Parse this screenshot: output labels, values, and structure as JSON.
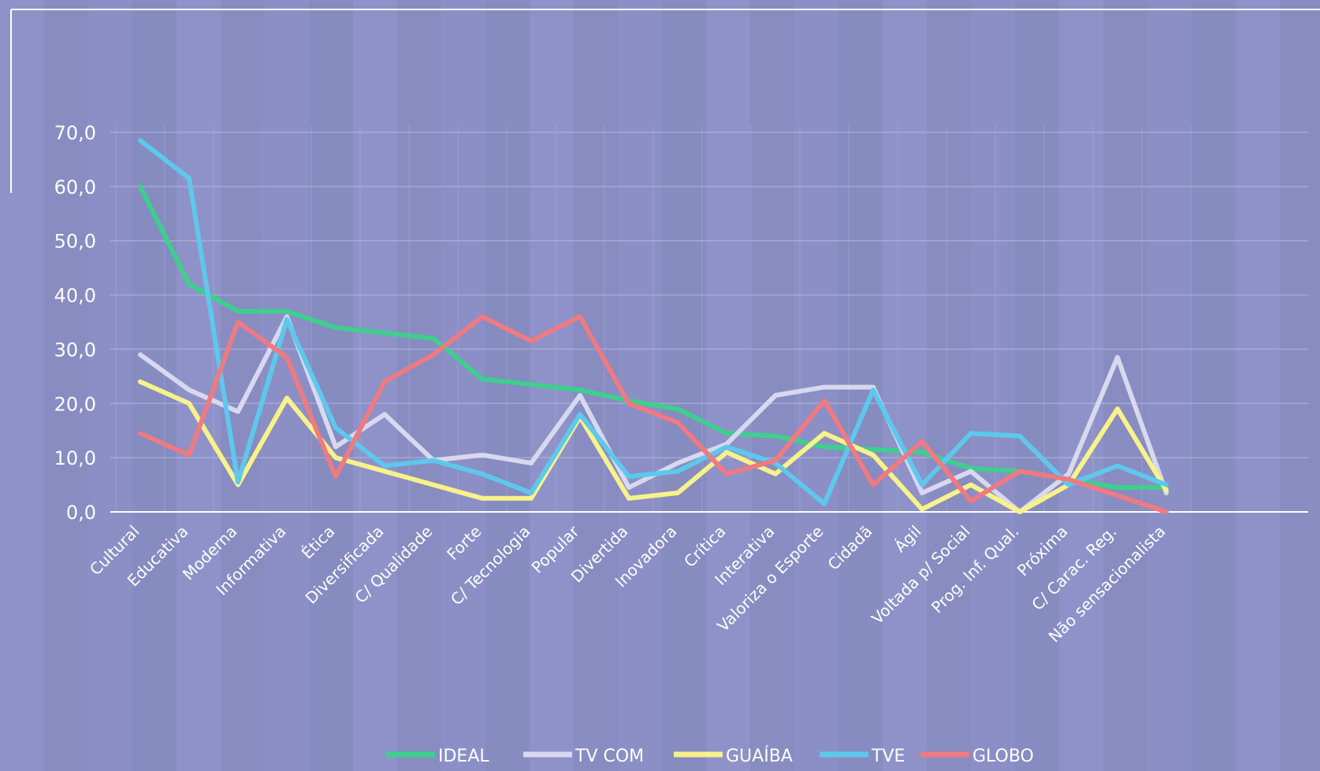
{
  "chart_data": {
    "type": "line",
    "title": "",
    "xlabel": "",
    "ylabel": "",
    "ylim": [
      0,
      70
    ],
    "yticks": [
      "0,0",
      "10,0",
      "20,0",
      "30,0",
      "40,0",
      "50,0",
      "60,0",
      "70,0"
    ],
    "grid": "vertical and horizontal",
    "legend_position": "bottom",
    "categories": [
      "Cultural",
      "Educativa",
      "Moderna",
      "Informativa",
      "Ética",
      "Diversificada",
      "C/ Qualidade",
      "Forte",
      "C/ Tecnologia",
      "Popular",
      "Divertida",
      "Inovadora",
      "Crítica",
      "Interativa",
      "Valoriza o Esporte",
      "Cidadã",
      "Ágil",
      "Voltada p/ Social",
      "Prog. Inf. Qual.",
      "Próxima",
      "C/ Carac. Reg.",
      "Não sensacionalista"
    ],
    "series": [
      {
        "name": "IDEAL",
        "color": "#3ecf8e",
        "values": [
          60,
          42,
          37,
          37,
          34,
          33,
          32,
          24.5,
          23.5,
          22.5,
          20.5,
          19,
          14.5,
          14,
          12,
          11.5,
          11,
          8,
          7.5,
          6,
          4.5,
          4.5
        ]
      },
      {
        "name": "TV COM",
        "color": "#d8d8ee",
        "values": [
          29,
          22.5,
          18.5,
          36,
          12,
          18,
          9.5,
          10.5,
          9,
          21.5,
          4.5,
          9,
          12.5,
          21.5,
          23,
          23,
          3.5,
          7.5,
          0,
          7,
          28.5,
          3.5
        ]
      },
      {
        "name": "GUAÍBA",
        "color": "#f7f28a",
        "values": [
          24,
          20,
          5,
          21,
          10,
          7.5,
          5,
          2.5,
          2.5,
          17.5,
          2.5,
          3.5,
          11,
          7,
          14.5,
          10.5,
          0.5,
          5,
          0,
          5,
          19,
          4
        ]
      },
      {
        "name": "TVE",
        "color": "#5ec8ec",
        "values": [
          68.5,
          61.5,
          5.5,
          35.5,
          15.5,
          8.5,
          9.5,
          7,
          3.5,
          18,
          6.5,
          7.5,
          12,
          9,
          1.5,
          22.5,
          5,
          14.5,
          14,
          5,
          8.5,
          5
        ]
      },
      {
        "name": "GLOBO",
        "color": "#ee7a82",
        "values": [
          14.5,
          10.5,
          35,
          28.5,
          6.5,
          24,
          29,
          36,
          31.5,
          36,
          20,
          16.5,
          7,
          9.5,
          20.5,
          5,
          13,
          2,
          7.5,
          6,
          3,
          0
        ]
      }
    ]
  }
}
